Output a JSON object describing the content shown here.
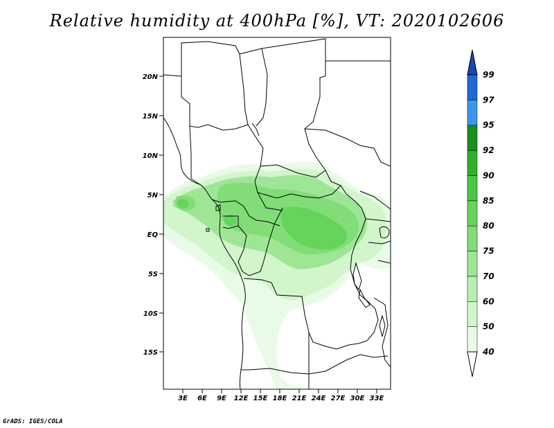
{
  "title": "Relative humidity at 400hPa [%], VT: 2020102606",
  "credit": "GrADS: IGES/COLA",
  "lat_ticks": [
    "20N",
    "15N",
    "10N",
    "5N",
    "EQ",
    "5S",
    "10S",
    "15S"
  ],
  "lon_ticks": [
    "3E",
    "6E",
    "9E",
    "12E",
    "15E",
    "18E",
    "21E",
    "24E",
    "27E",
    "30E",
    "33E"
  ],
  "colorbar": {
    "labels": [
      "40",
      "50",
      "60",
      "70",
      "75",
      "80",
      "85",
      "90",
      "92",
      "95",
      "97",
      "99"
    ],
    "colors": [
      "#ffffff",
      "#e8fbe6",
      "#d2f5cc",
      "#b9eeb2",
      "#9ee696",
      "#82dd78",
      "#66d35b",
      "#4ac744",
      "#2fb02c",
      "#1a8e1a",
      "#3d96ea",
      "#1e6bd6",
      "#1746b8"
    ]
  }
}
